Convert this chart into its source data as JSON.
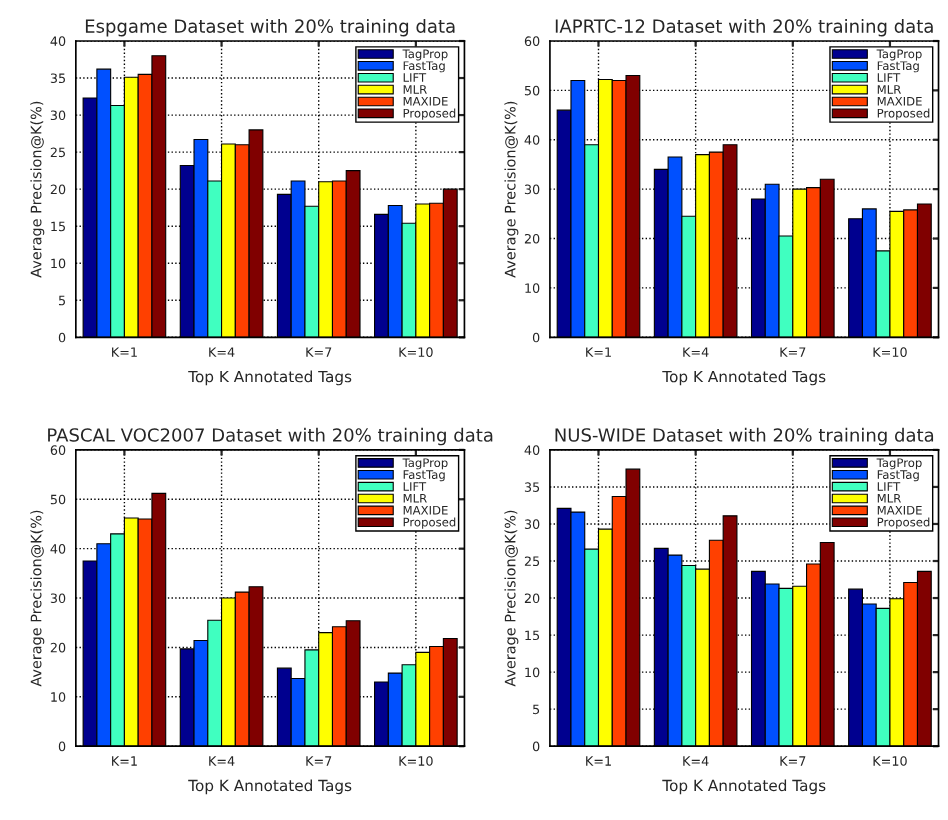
{
  "chart_data": [
    {
      "type": "bar",
      "title": "Espgame Dataset with 20% training data",
      "xlabel": "Top K Annotated Tags",
      "ylabel": "Average Precision@K(%)",
      "categories": [
        "K=1",
        "K=4",
        "K=7",
        "K=10"
      ],
      "ylim": [
        0,
        40
      ],
      "yticks": [
        0,
        5,
        10,
        15,
        20,
        25,
        30,
        35,
        40
      ],
      "grid": true,
      "legend": "top right",
      "series": [
        {
          "name": "TagProp",
          "color": "#00008f",
          "values": [
            32.3,
            23.2,
            19.3,
            16.6
          ]
        },
        {
          "name": "FastTag",
          "color": "#0050ff",
          "values": [
            36.2,
            26.7,
            21.1,
            17.8
          ]
        },
        {
          "name": "LIFT",
          "color": "#40ffc0",
          "values": [
            31.3,
            21.1,
            17.7,
            15.4
          ]
        },
        {
          "name": "MLR",
          "color": "#ffff00",
          "values": [
            35.1,
            26.1,
            21.0,
            18.0
          ]
        },
        {
          "name": "MAXIDE",
          "color": "#ff4000",
          "values": [
            35.5,
            26.0,
            21.1,
            18.1
          ]
        },
        {
          "name": "Proposed",
          "color": "#800000",
          "values": [
            38.0,
            28.0,
            22.5,
            20.0
          ]
        }
      ]
    },
    {
      "type": "bar",
      "title": "IAPRTC-12 Dataset with 20% training data",
      "xlabel": "Top K Annotated Tags",
      "ylabel": "Average Precision@K(%)",
      "categories": [
        "K=1",
        "K=4",
        "K=7",
        "K=10"
      ],
      "ylim": [
        0,
        60
      ],
      "yticks": [
        0,
        10,
        20,
        30,
        40,
        50,
        60
      ],
      "grid": true,
      "legend": "top right",
      "series": [
        {
          "name": "TagProp",
          "color": "#00008f",
          "values": [
            46,
            34,
            28,
            24
          ]
        },
        {
          "name": "FastTag",
          "color": "#0050ff",
          "values": [
            52,
            36.5,
            31,
            26
          ]
        },
        {
          "name": "LIFT",
          "color": "#40ffc0",
          "values": [
            39,
            24.5,
            20.5,
            17.5
          ]
        },
        {
          "name": "MLR",
          "color": "#ffff00",
          "values": [
            52.2,
            37,
            30,
            25.5
          ]
        },
        {
          "name": "MAXIDE",
          "color": "#ff4000",
          "values": [
            52,
            37.5,
            30.3,
            25.8
          ]
        },
        {
          "name": "Proposed",
          "color": "#800000",
          "values": [
            53,
            39,
            32,
            27
          ]
        }
      ]
    },
    {
      "type": "bar",
      "title": "PASCAL VOC2007 Dataset with 20% training data",
      "xlabel": "Top K Annotated Tags",
      "ylabel": "Average Precision@K(%)",
      "categories": [
        "K=1",
        "K=4",
        "K=7",
        "K=10"
      ],
      "ylim": [
        0,
        60
      ],
      "yticks": [
        0,
        10,
        20,
        30,
        40,
        50,
        60
      ],
      "grid": true,
      "legend": "top right",
      "series": [
        {
          "name": "TagProp",
          "color": "#00008f",
          "values": [
            37.5,
            19.7,
            15.8,
            13
          ]
        },
        {
          "name": "FastTag",
          "color": "#0050ff",
          "values": [
            41,
            21.4,
            13.7,
            14.8
          ]
        },
        {
          "name": "LIFT",
          "color": "#40ffc0",
          "values": [
            43,
            25.5,
            19.5,
            16.5
          ]
        },
        {
          "name": "MLR",
          "color": "#ffff00",
          "values": [
            46.2,
            30,
            23,
            19
          ]
        },
        {
          "name": "MAXIDE",
          "color": "#ff4000",
          "values": [
            46,
            31.2,
            24.2,
            20.2
          ]
        },
        {
          "name": "Proposed",
          "color": "#800000",
          "values": [
            51.2,
            32.3,
            25.4,
            21.8
          ]
        }
      ]
    },
    {
      "type": "bar",
      "title": "NUS-WIDE Dataset with 20% training data",
      "xlabel": "Top K Annotated Tags",
      "ylabel": "Average Precision@K(%)",
      "categories": [
        "K=1",
        "K=4",
        "K=7",
        "K=10"
      ],
      "ylim": [
        0,
        40
      ],
      "yticks": [
        0,
        5,
        10,
        15,
        20,
        25,
        30,
        35,
        40
      ],
      "grid": true,
      "legend": "top right",
      "series": [
        {
          "name": "TagProp",
          "color": "#00008f",
          "values": [
            32.1,
            26.7,
            23.6,
            21.2
          ]
        },
        {
          "name": "FastTag",
          "color": "#0050ff",
          "values": [
            31.6,
            25.8,
            21.9,
            19.2
          ]
        },
        {
          "name": "LIFT",
          "color": "#40ffc0",
          "values": [
            26.6,
            24.4,
            21.3,
            18.6
          ]
        },
        {
          "name": "MLR",
          "color": "#ffff00",
          "values": [
            29.3,
            23.9,
            21.6,
            19.9
          ]
        },
        {
          "name": "MAXIDE",
          "color": "#ff4000",
          "values": [
            33.7,
            27.8,
            24.6,
            22.1
          ]
        },
        {
          "name": "Proposed",
          "color": "#800000",
          "values": [
            37.4,
            31.1,
            27.5,
            23.6
          ]
        }
      ]
    }
  ]
}
